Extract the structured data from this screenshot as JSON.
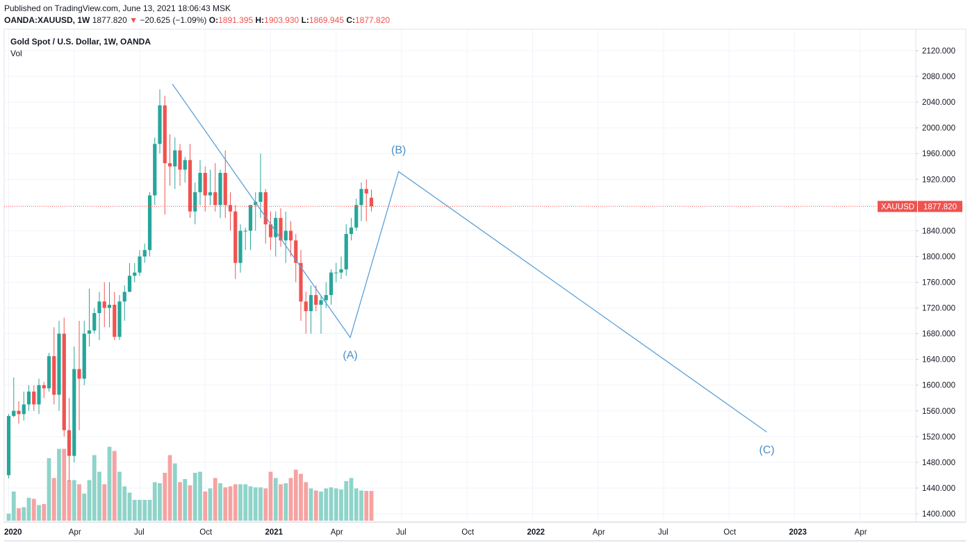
{
  "header": {
    "published": "Published on TradingView.com, June 13, 2021 18:06:43 MSK",
    "symbol": "OANDA:XAUUSD, 1W",
    "last": "1877.820",
    "change": "−20.625 (−1.09%)",
    "o_label": "O:",
    "o_value": "1891.395",
    "h_label": "H:",
    "h_value": "1903.930",
    "l_label": "L:",
    "l_value": "1869.945",
    "c_label": "C:",
    "c_value": "1877.820"
  },
  "pane": {
    "title": "Gold Spot / U.S. Dollar, 1W, OANDA",
    "volume_label": "Vol"
  },
  "price_tag": {
    "symbol": "XAUUSD",
    "value": "1877.820"
  },
  "colors": {
    "up": "#26a69a",
    "down": "#ef5350",
    "vol_up": "#8fd3c9",
    "vol_down": "#f5a3a2",
    "wave_line": "#5b9fd6",
    "grid": "#f0f3fa",
    "last_price": "#ef5350"
  },
  "chart_data": {
    "type": "candlestick",
    "title": "Gold Spot / U.S. Dollar, 1W, OANDA",
    "y_ticks": [
      1400,
      1440,
      1480,
      1520,
      1560,
      1600,
      1640,
      1680,
      1720,
      1760,
      1800,
      1840,
      1880,
      1920,
      1960,
      2000,
      2040,
      2080,
      2120
    ],
    "y_tick_labels": [
      "1400.000",
      "1440.000",
      "1480.000",
      "1520.000",
      "1560.000",
      "1600.000",
      "1640.000",
      "1680.000",
      "1720.000",
      "1760.000",
      "1800.000",
      "1840.000",
      "1880.000",
      "1920.000",
      "1960.000",
      "2000.000",
      "2040.000",
      "2080.000",
      "2120.000"
    ],
    "ylim": [
      1388,
      2138
    ],
    "x_ticks": [
      {
        "label": "2020",
        "week": 0,
        "bold": true
      },
      {
        "label": "Apr",
        "week": 13,
        "bold": false
      },
      {
        "label": "Jul",
        "week": 26,
        "bold": false
      },
      {
        "label": "Oct",
        "week": 39,
        "bold": false
      },
      {
        "label": "2021",
        "week": 52,
        "bold": true
      },
      {
        "label": "Apr",
        "week": 65,
        "bold": false
      },
      {
        "label": "Jul",
        "week": 78,
        "bold": false
      },
      {
        "label": "Oct",
        "week": 91,
        "bold": false
      },
      {
        "label": "2022",
        "week": 104,
        "bold": true
      },
      {
        "label": "Apr",
        "week": 117,
        "bold": false
      },
      {
        "label": "Jul",
        "week": 130,
        "bold": false
      },
      {
        "label": "Oct",
        "week": 143,
        "bold": false
      },
      {
        "label": "2023",
        "week": 156,
        "bold": true
      },
      {
        "label": "Apr",
        "week": 169,
        "bold": false
      }
    ],
    "candles": [
      [
        1460,
        1555,
        1455,
        1552
      ],
      [
        1552,
        1612,
        1550,
        1560
      ],
      [
        1560,
        1575,
        1540,
        1555
      ],
      [
        1555,
        1590,
        1545,
        1570
      ],
      [
        1570,
        1600,
        1560,
        1590
      ],
      [
        1590,
        1600,
        1560,
        1570
      ],
      [
        1570,
        1610,
        1555,
        1600
      ],
      [
        1600,
        1605,
        1580,
        1595
      ],
      [
        1595,
        1650,
        1590,
        1645
      ],
      [
        1645,
        1690,
        1570,
        1585
      ],
      [
        1585,
        1700,
        1560,
        1680
      ],
      [
        1680,
        1705,
        1520,
        1530
      ],
      [
        1530,
        1580,
        1450,
        1490
      ],
      [
        1490,
        1660,
        1480,
        1625
      ],
      [
        1625,
        1700,
        1530,
        1610
      ],
      [
        1610,
        1700,
        1600,
        1680
      ],
      [
        1680,
        1750,
        1660,
        1685
      ],
      [
        1685,
        1720,
        1680,
        1712
      ],
      [
        1712,
        1745,
        1670,
        1730
      ],
      [
        1730,
        1760,
        1690,
        1720
      ],
      [
        1720,
        1760,
        1690,
        1725
      ],
      [
        1725,
        1745,
        1670,
        1675
      ],
      [
        1675,
        1740,
        1670,
        1730
      ],
      [
        1730,
        1755,
        1700,
        1745
      ],
      [
        1745,
        1790,
        1745,
        1770
      ],
      [
        1770,
        1790,
        1760,
        1775
      ],
      [
        1775,
        1810,
        1770,
        1800
      ],
      [
        1800,
        1820,
        1790,
        1810
      ],
      [
        1810,
        1900,
        1800,
        1895
      ],
      [
        1895,
        1985,
        1880,
        1975
      ],
      [
        1975,
        2060,
        1960,
        2035
      ],
      [
        2035,
        2050,
        1865,
        1945
      ],
      [
        1945,
        1990,
        1910,
        1940
      ],
      [
        1940,
        1985,
        1905,
        1965
      ],
      [
        1965,
        1975,
        1910,
        1935
      ],
      [
        1935,
        1955,
        1915,
        1950
      ],
      [
        1950,
        1975,
        1860,
        1870
      ],
      [
        1870,
        1915,
        1850,
        1900
      ],
      [
        1900,
        1950,
        1880,
        1930
      ],
      [
        1930,
        1940,
        1870,
        1895
      ],
      [
        1895,
        1935,
        1880,
        1900
      ],
      [
        1900,
        1945,
        1870,
        1880
      ],
      [
        1880,
        1935,
        1860,
        1930
      ],
      [
        1930,
        1965,
        1860,
        1880
      ],
      [
        1880,
        1900,
        1840,
        1870
      ],
      [
        1870,
        1880,
        1765,
        1790
      ],
      [
        1790,
        1850,
        1775,
        1840
      ],
      [
        1840,
        1845,
        1810,
        1840
      ],
      [
        1840,
        1880,
        1810,
        1880
      ],
      [
        1880,
        1900,
        1840,
        1885
      ],
      [
        1885,
        1960,
        1860,
        1900
      ],
      [
        1900,
        1905,
        1820,
        1850
      ],
      [
        1850,
        1870,
        1810,
        1830
      ],
      [
        1830,
        1870,
        1800,
        1860
      ],
      [
        1860,
        1875,
        1815,
        1825
      ],
      [
        1825,
        1870,
        1790,
        1840
      ],
      [
        1840,
        1855,
        1800,
        1825
      ],
      [
        1825,
        1835,
        1760,
        1790
      ],
      [
        1790,
        1810,
        1700,
        1730
      ],
      [
        1730,
        1745,
        1680,
        1715
      ],
      [
        1715,
        1755,
        1680,
        1740
      ],
      [
        1740,
        1755,
        1715,
        1725
      ],
      [
        1725,
        1740,
        1680,
        1732
      ],
      [
        1732,
        1760,
        1720,
        1740
      ],
      [
        1740,
        1780,
        1725,
        1775
      ],
      [
        1775,
        1790,
        1760,
        1775
      ],
      [
        1775,
        1800,
        1765,
        1780
      ],
      [
        1780,
        1850,
        1770,
        1835
      ],
      [
        1835,
        1860,
        1825,
        1845
      ],
      [
        1845,
        1890,
        1840,
        1880
      ],
      [
        1880,
        1915,
        1855,
        1905
      ],
      [
        1905,
        1920,
        1855,
        1898
      ],
      [
        1891.395,
        1903.93,
        1869.945,
        1877.82
      ]
    ],
    "volume_ylim": [
      0,
      600
    ],
    "volume": [
      34,
      140,
      60,
      65,
      110,
      105,
      75,
      80,
      300,
      205,
      345,
      345,
      195,
      195,
      175,
      130,
      195,
      315,
      235,
      175,
      355,
      335,
      235,
      165,
      135,
      100,
      100,
      100,
      100,
      185,
      180,
      230,
      315,
      275,
      185,
      200,
      170,
      230,
      235,
      140,
      155,
      205,
      180,
      160,
      165,
      175,
      175,
      175,
      165,
      160,
      160,
      155,
      235,
      205,
      175,
      180,
      205,
      245,
      225,
      185,
      155,
      145,
      140,
      155,
      160,
      155,
      150,
      190,
      205,
      155,
      145,
      143,
      143
    ]
  },
  "waves": {
    "points": [
      {
        "week": 32.5,
        "price": 2068
      },
      {
        "week": 67.8,
        "price": 1674
      },
      {
        "week": 77.4,
        "price": 1932
      },
      {
        "week": 150.5,
        "price": 1527
      }
    ],
    "labels": [
      {
        "text": "(A)",
        "week": 67.8,
        "price": 1641
      },
      {
        "text": "(B)",
        "week": 77.4,
        "price": 1960
      },
      {
        "text": "(C)",
        "week": 150.5,
        "price": 1494
      }
    ]
  }
}
